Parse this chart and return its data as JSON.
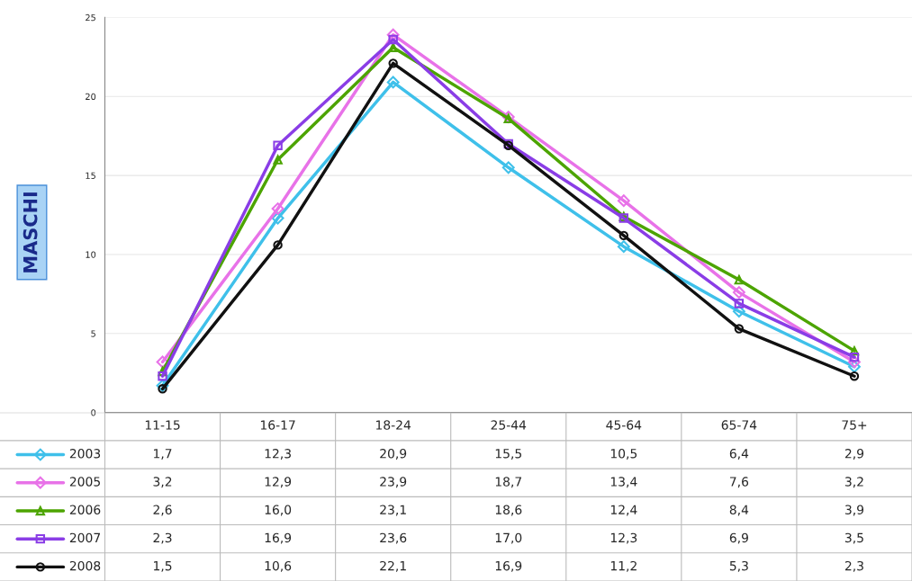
{
  "chart_data": {
    "type": "line",
    "ylabel": "MASCHI",
    "categories": [
      "11-15",
      "16-17",
      "18-24",
      "25-44",
      "45-64",
      "65-74",
      "75+"
    ],
    "ylim": [
      0,
      25
    ],
    "yticks": [
      0,
      5,
      10,
      15,
      20,
      25
    ],
    "grid": "y",
    "legend": "bottom",
    "series": [
      {
        "name": "2003",
        "color": "#3fc0ea",
        "marker": "diamond",
        "values": [
          1.7,
          12.3,
          20.9,
          15.5,
          10.5,
          6.4,
          2.9
        ],
        "value_labels": [
          "1,7",
          "12,3",
          "20,9",
          "15,5",
          "10,5",
          "6,4",
          "2,9"
        ]
      },
      {
        "name": "2005",
        "color": "#e872e8",
        "marker": "diamond",
        "values": [
          3.2,
          12.9,
          23.9,
          18.7,
          13.4,
          7.6,
          3.2
        ],
        "value_labels": [
          "3,2",
          "12,9",
          "23,9",
          "18,7",
          "13,4",
          "7,6",
          "3,2"
        ]
      },
      {
        "name": "2006",
        "color": "#4ca400",
        "marker": "triangle",
        "values": [
          2.6,
          16.0,
          23.1,
          18.6,
          12.4,
          8.4,
          3.9
        ],
        "value_labels": [
          "2,6",
          "16,0",
          "23,1",
          "18,6",
          "12,4",
          "8,4",
          "3,9"
        ]
      },
      {
        "name": "2007",
        "color": "#8a3de6",
        "marker": "square",
        "values": [
          2.3,
          16.9,
          23.6,
          17.0,
          12.3,
          6.9,
          3.5
        ],
        "value_labels": [
          "2,3",
          "16,9",
          "23,6",
          "17,0",
          "12,3",
          "6,9",
          "3,5"
        ]
      },
      {
        "name": "2008",
        "color": "#111111",
        "marker": "circle",
        "values": [
          1.5,
          10.6,
          22.1,
          16.9,
          11.2,
          5.3,
          2.3
        ],
        "value_labels": [
          "1,5",
          "10,6",
          "22,1",
          "16,9",
          "11,2",
          "5,3",
          "2,3"
        ]
      }
    ]
  }
}
